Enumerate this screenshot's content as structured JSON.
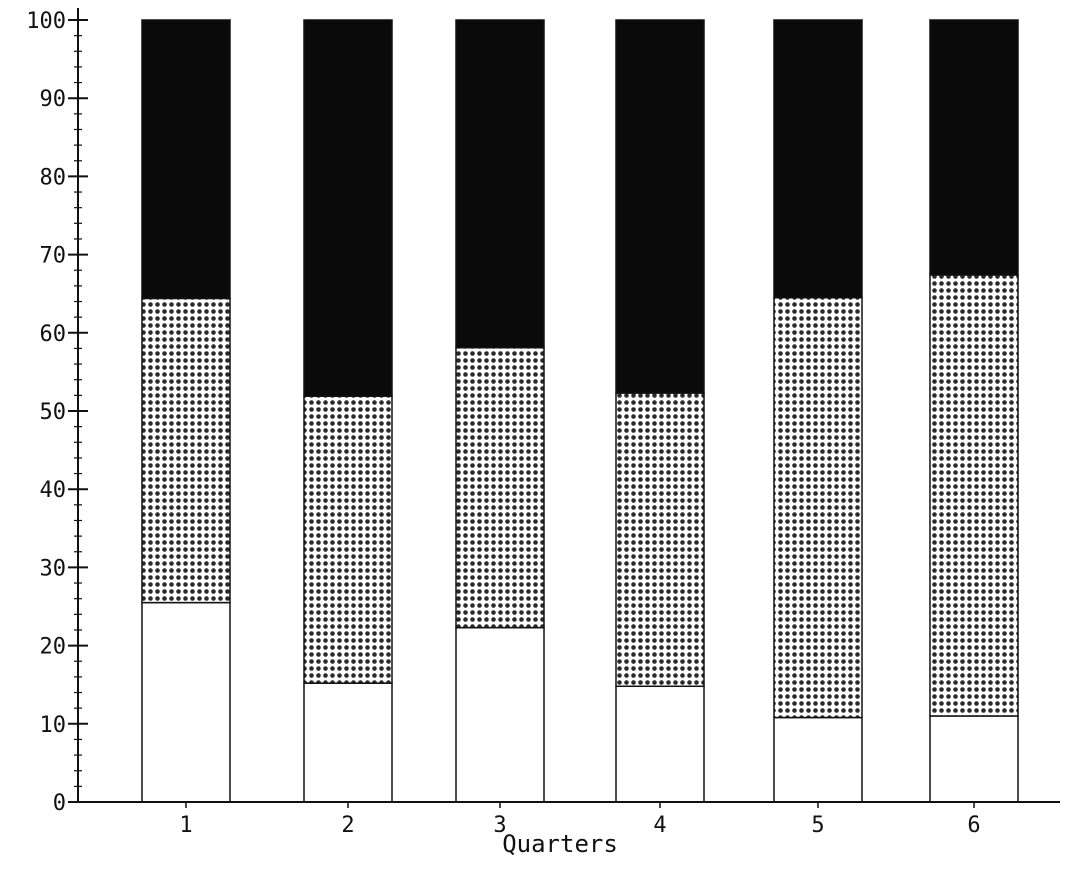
{
  "chart_data": {
    "type": "bar",
    "stacked": true,
    "title": "",
    "xlabel": "Quarters",
    "ylabel": "",
    "ylim": [
      0,
      100
    ],
    "yticks": [
      0,
      10,
      20,
      30,
      40,
      50,
      60,
      70,
      80,
      90,
      100
    ],
    "categories": [
      "1",
      "2",
      "3",
      "4",
      "5",
      "6"
    ],
    "series": [
      {
        "pattern": "white",
        "color": "#ffffff",
        "values": [
          25.5,
          15.2,
          22.3,
          14.8,
          10.8,
          11.0
        ]
      },
      {
        "pattern": "dotted",
        "color": "#d9d9d9",
        "values": [
          38.9,
          36.7,
          35.8,
          37.5,
          53.7,
          56.4
        ]
      },
      {
        "pattern": "black",
        "color": "#0a0a0a",
        "values": [
          35.6,
          48.1,
          41.9,
          47.7,
          35.5,
          32.6
        ]
      }
    ],
    "grid": false,
    "legend": "none"
  }
}
